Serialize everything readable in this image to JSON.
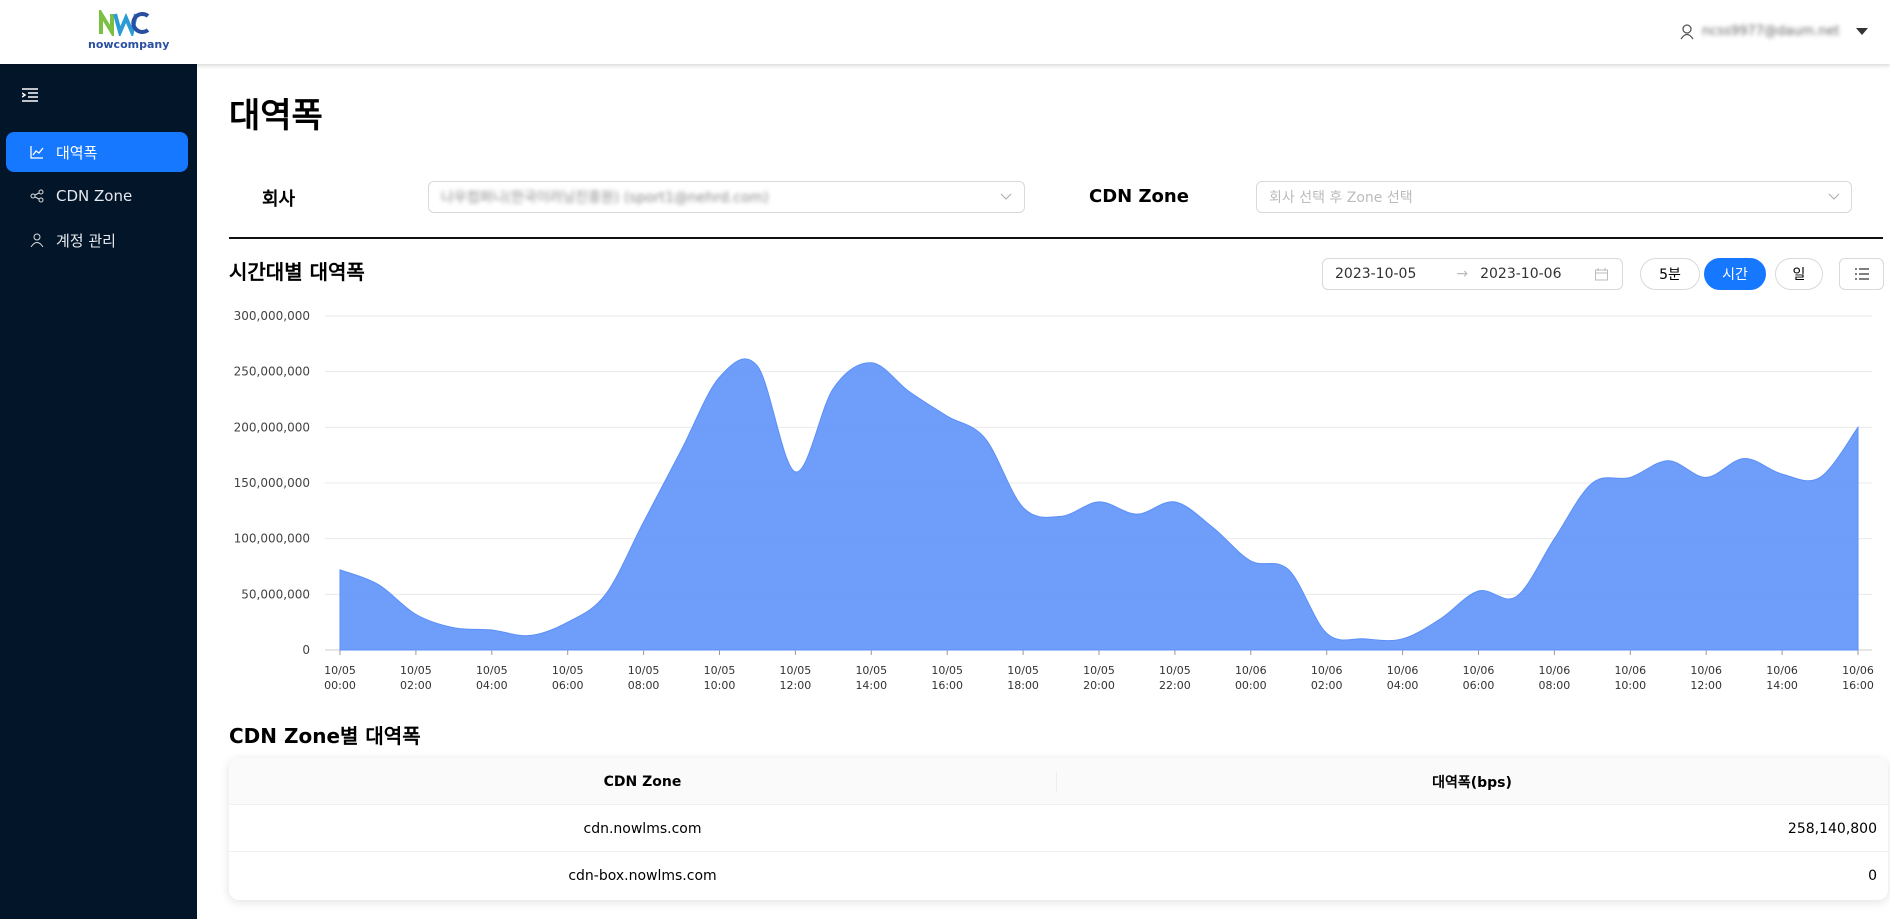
{
  "header": {
    "logo": "nowcompany",
    "user": "ncss9977@daum.net"
  },
  "sidebar": {
    "items": [
      "대역폭",
      "CDN Zone",
      "계정 관리"
    ]
  },
  "page_title": "대역폭",
  "filters": {
    "company_label": "회사",
    "company_value": "나우컴퍼니(한국이러닝진흥원) (sport1@nehrd.com)",
    "zone_label": "CDN Zone",
    "zone_placeholder": "회사 선택 후 Zone 선택"
  },
  "controls": {
    "date_start": "2023-10-05",
    "date_end": "2023-10-06",
    "buttons": [
      "5분",
      "시간",
      "일"
    ]
  },
  "chart_data": {
    "type": "area",
    "title": "시간대별 대역폭",
    "color": "#5b8ff9",
    "grid": true,
    "categories": [
      "10/05 00:00",
      null,
      "10/05 02:00",
      null,
      "10/05 04:00",
      null,
      "10/05 06:00",
      null,
      "10/05 08:00",
      null,
      "10/05 10:00",
      null,
      "10/05 12:00",
      null,
      "10/05 14:00",
      null,
      "10/05 16:00",
      null,
      "10/05 18:00",
      null,
      "10/05 20:00",
      null,
      "10/05 22:00",
      null,
      "10/06 00:00",
      null,
      "10/06 02:00",
      null,
      "10/06 04:00",
      null,
      "10/06 06:00",
      null,
      "10/06 08:00",
      null,
      "10/06 10:00",
      null,
      "10/06 12:00",
      null,
      "10/06 14:00",
      null,
      "10/06 16:00"
    ],
    "values": [
      72000000,
      59000000,
      32000000,
      20000000,
      18000000,
      13000000,
      25000000,
      50000000,
      115000000,
      180000000,
      245000000,
      255000000,
      160000000,
      235000000,
      258000000,
      232000000,
      210000000,
      190000000,
      128000000,
      120000000,
      133000000,
      122000000,
      133000000,
      110000000,
      80000000,
      72000000,
      15000000,
      10000000,
      10000000,
      28000000,
      53000000,
      48000000,
      100000000,
      150000000,
      155000000,
      170000000,
      155000000,
      172000000,
      158000000,
      155000000,
      200000000
    ],
    "ylim": [
      0,
      300000000
    ],
    "yticks": [
      0,
      {
        "value": 50000000,
        "label": "50,000,000"
      },
      {
        "value": 100000000,
        "label": "100,000,000"
      },
      {
        "value": 150000000,
        "label": "150,000,000"
      },
      {
        "value": 200000000,
        "label": "200,000,000"
      },
      {
        "value": 250000000,
        "label": "250,000,000"
      },
      {
        "value": 300000000,
        "label": "300,000,000"
      }
    ]
  },
  "table": {
    "title": "CDN Zone별 대역폭",
    "columns": [
      "CDN Zone",
      "대역폭(bps)"
    ],
    "rows": [
      [
        "cdn.nowlms.com",
        "258,140,800"
      ],
      [
        "cdn-box.nowlms.com",
        "0"
      ]
    ]
  }
}
